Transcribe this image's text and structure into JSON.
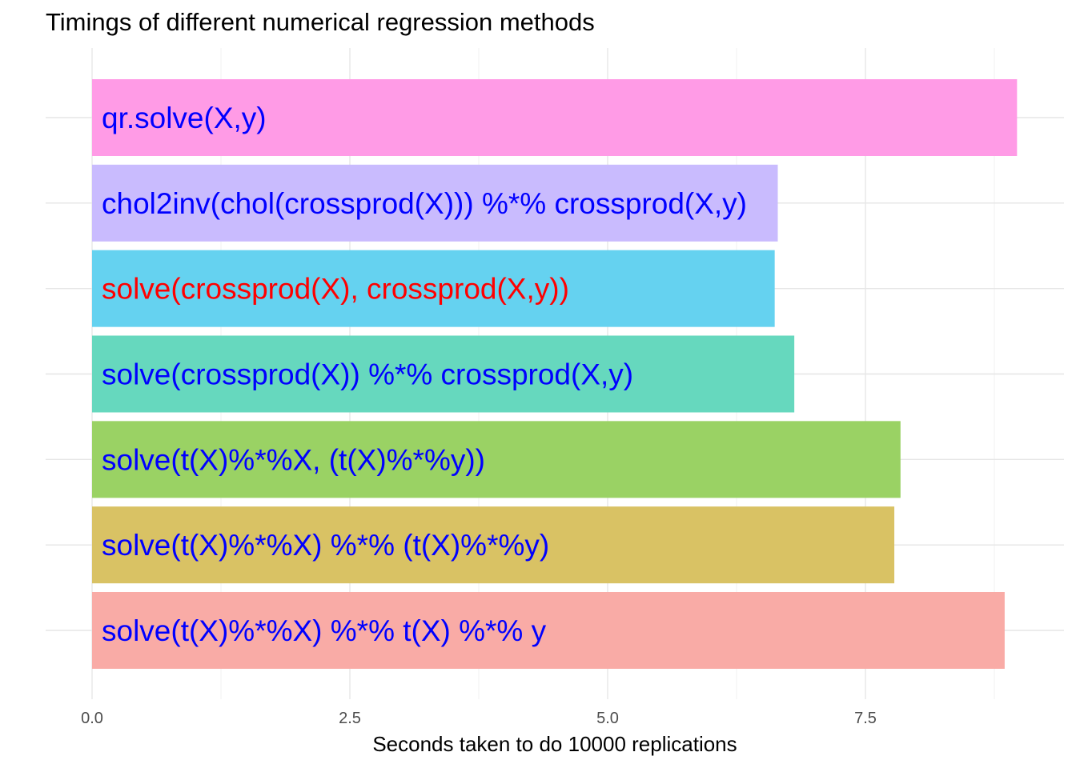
{
  "chart_data": {
    "type": "bar",
    "orientation": "horizontal",
    "title": "Timings of different numerical regression methods",
    "xlabel": "Seconds taken to do 10000 replications",
    "ylabel": "",
    "xlim": [
      -0.45,
      9.35
    ],
    "x_ticks": [
      0.0,
      2.5,
      5.0,
      7.5
    ],
    "x_tick_labels": [
      "0.0",
      "2.5",
      "5.0",
      "7.5"
    ],
    "grid": true,
    "categories": [
      "qr.solve(X,y)",
      "chol2inv(chol(crossprod(X))) %*% crossprod(X,y)",
      "solve(crossprod(X), crossprod(X,y))",
      "solve(crossprod(X)) %*% crossprod(X,y)",
      "solve(t(X)%*%X, (t(X)%*%y))",
      "solve(t(X)%*%X) %*% (t(X)%*%y)",
      "solve(t(X)%*%X) %*% t(X) %*% y"
    ],
    "values": [
      8.97,
      6.65,
      6.62,
      6.81,
      7.84,
      7.78,
      8.85
    ],
    "bar_colors": [
      "#FF9BE6",
      "#C9BBFE",
      "#65D2F0",
      "#66D8BE",
      "#9AD264",
      "#D9C264",
      "#F9ABA6"
    ],
    "label_colors": [
      "#0000FF",
      "#0000FF",
      "#FF0000",
      "#0000FF",
      "#0000FF",
      "#0000FF",
      "#0000FF"
    ]
  }
}
